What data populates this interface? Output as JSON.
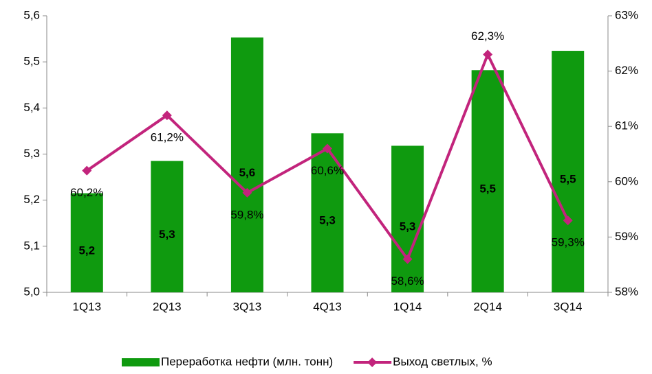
{
  "chart_data": {
    "type": "combo",
    "categories": [
      "1Q13",
      "2Q13",
      "3Q13",
      "4Q13",
      "1Q14",
      "2Q14",
      "3Q14"
    ],
    "series": [
      {
        "name": "Переработка нефти (млн. тонн)",
        "type": "bar",
        "color": "#0f9a0f",
        "values": [
          5.215,
          5.285,
          5.553,
          5.345,
          5.318,
          5.482,
          5.524
        ],
        "value_labels": [
          "5,2",
          "5,3",
          "5,6",
          "5,3",
          "5,3",
          "5,5",
          "5,5"
        ]
      },
      {
        "name": "Выход светлых, %",
        "type": "line",
        "axis": "y2",
        "color": "#c2247c",
        "marker": "diamond",
        "values": [
          60.2,
          61.2,
          59.8,
          60.6,
          58.6,
          62.3,
          59.3
        ],
        "value_labels": [
          "60,2%",
          "61,2%",
          "59,8%",
          "60,6%",
          "58,6%",
          "62,3%",
          "59,3%"
        ]
      }
    ],
    "ylim": [
      5.0,
      5.6
    ],
    "yticks": [
      {
        "value": 5.0,
        "label": "5,0"
      },
      {
        "value": 5.1,
        "label": "5,1"
      },
      {
        "value": 5.2,
        "label": "5,2"
      },
      {
        "value": 5.3,
        "label": "5,3"
      },
      {
        "value": 5.4,
        "label": "5,4"
      },
      {
        "value": 5.5,
        "label": "5,5"
      },
      {
        "value": 5.6,
        "label": "5,6"
      }
    ],
    "y2lim": [
      58,
      63
    ],
    "y2ticks": [
      {
        "value": 58,
        "label": "58%"
      },
      {
        "value": 59,
        "label": "59%"
      },
      {
        "value": 60,
        "label": "60%"
      },
      {
        "value": 61,
        "label": "61%"
      },
      {
        "value": 62,
        "label": "62%"
      },
      {
        "value": 63,
        "label": "63%"
      }
    ],
    "grid": false,
    "legend": "bottom"
  }
}
